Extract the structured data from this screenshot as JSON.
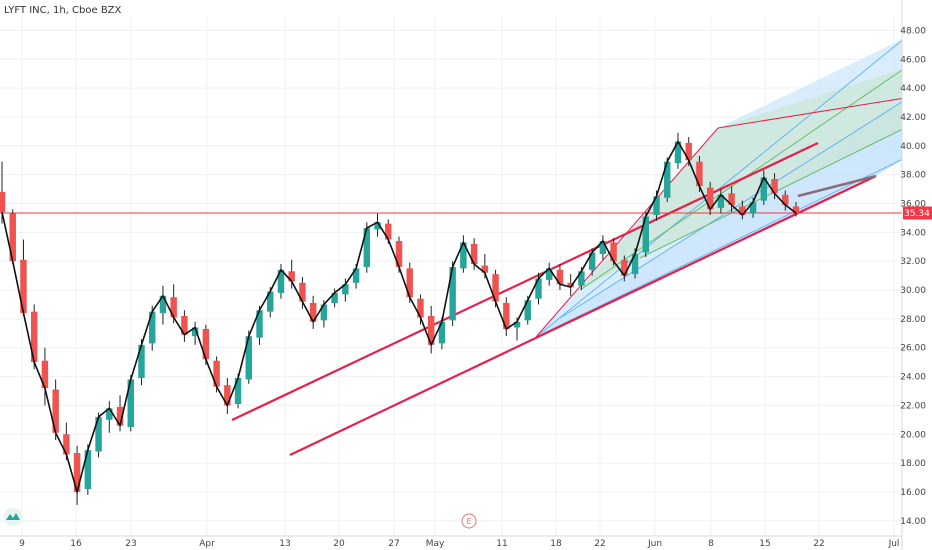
{
  "header": {
    "title": "LYFT INC, 1h, Cboe BZX"
  },
  "price_badge": {
    "value": "35.34",
    "color": "#f23645"
  },
  "earnings_marker": {
    "label": "E"
  },
  "logo": {
    "icon": "tradingview-logo-icon"
  },
  "colors": {
    "up": "#26a69a",
    "down": "#ef5350",
    "wick": "#222222",
    "trendline": "#e91e4a",
    "price_line": "#f23645",
    "channel_fill_blue": "#bbdefb",
    "channel_fill_green": "#c8e6c9",
    "grid": "#eef0f3"
  },
  "chart_data": {
    "type": "candlestick",
    "title": "LYFT INC, 1h, Cboe BZX",
    "x_tick_labels": [
      "9",
      "16",
      "23",
      "Apr",
      "13",
      "20",
      "27",
      "May",
      "11",
      "18",
      "22",
      "Jun",
      "8",
      "15",
      "22",
      "Jul"
    ],
    "y_tick_labels": [
      "14.00",
      "16.00",
      "18.00",
      "20.00",
      "22.00",
      "24.00",
      "26.00",
      "28.00",
      "30.00",
      "32.00",
      "34.00",
      "36.00",
      "38.00",
      "40.00",
      "42.00",
      "44.00",
      "46.00",
      "48.00"
    ],
    "ylim": [
      13.5,
      49.0
    ],
    "current_price": 35.34,
    "grid": true,
    "series": [
      {
        "name": "",
        "values": [
          [
            36.8,
            38.9,
            34.6,
            35.4
          ],
          [
            35.3,
            35.6,
            31.8,
            32.0
          ],
          [
            32.1,
            33.5,
            28.2,
            28.4
          ],
          [
            28.5,
            29.0,
            24.5,
            25.0
          ],
          [
            25.1,
            26.0,
            22.0,
            23.2
          ],
          [
            23.1,
            23.8,
            19.6,
            20.1
          ],
          [
            20.0,
            20.8,
            18.2,
            18.6
          ],
          [
            18.7,
            19.2,
            15.1,
            16.0
          ],
          [
            16.2,
            19.3,
            15.8,
            18.9
          ],
          [
            18.8,
            21.5,
            18.4,
            21.2
          ],
          [
            21.0,
            22.3,
            20.1,
            21.8
          ],
          [
            21.9,
            22.7,
            20.2,
            20.6
          ],
          [
            20.5,
            24.1,
            20.2,
            23.8
          ],
          [
            23.9,
            26.6,
            23.4,
            26.2
          ],
          [
            26.3,
            28.9,
            25.8,
            28.5
          ],
          [
            28.4,
            30.3,
            27.6,
            29.6
          ],
          [
            29.5,
            30.4,
            27.7,
            28.1
          ],
          [
            28.2,
            28.6,
            26.4,
            26.9
          ],
          [
            26.8,
            27.8,
            26.2,
            27.4
          ],
          [
            27.3,
            27.6,
            24.8,
            25.2
          ],
          [
            25.1,
            25.4,
            22.9,
            23.3
          ],
          [
            23.4,
            23.9,
            21.4,
            22.0
          ],
          [
            22.1,
            24.2,
            21.8,
            23.9
          ],
          [
            23.8,
            27.2,
            23.5,
            26.8
          ],
          [
            26.7,
            28.9,
            26.2,
            28.6
          ],
          [
            28.5,
            30.2,
            28.1,
            29.9
          ],
          [
            29.8,
            31.8,
            29.4,
            31.4
          ],
          [
            31.3,
            32.1,
            30.1,
            30.6
          ],
          [
            30.5,
            30.9,
            28.7,
            29.2
          ],
          [
            29.1,
            29.6,
            27.3,
            27.8
          ],
          [
            27.9,
            29.3,
            27.4,
            29.0
          ],
          [
            29.1,
            30.1,
            28.8,
            29.8
          ],
          [
            29.7,
            30.8,
            29.2,
            30.4
          ],
          [
            30.5,
            31.8,
            30.1,
            31.5
          ],
          [
            31.6,
            34.7,
            31.2,
            34.3
          ],
          [
            34.2,
            35.3,
            33.7,
            34.7
          ],
          [
            34.6,
            34.9,
            33.2,
            33.5
          ],
          [
            33.4,
            33.7,
            31.2,
            31.6
          ],
          [
            31.5,
            31.9,
            29.1,
            29.5
          ],
          [
            29.4,
            29.7,
            27.6,
            28.1
          ],
          [
            28.2,
            28.9,
            25.6,
            26.2
          ],
          [
            26.3,
            28.1,
            25.9,
            27.8
          ],
          [
            27.9,
            32.0,
            27.5,
            31.6
          ],
          [
            31.5,
            33.8,
            31.2,
            33.3
          ],
          [
            33.2,
            33.6,
            31.4,
            31.8
          ],
          [
            31.7,
            32.5,
            30.8,
            31.2
          ],
          [
            31.1,
            31.4,
            28.8,
            29.2
          ],
          [
            29.1,
            29.5,
            26.8,
            27.3
          ],
          [
            27.4,
            28.1,
            26.5,
            27.8
          ],
          [
            27.9,
            29.6,
            27.6,
            29.3
          ],
          [
            29.4,
            31.2,
            29.0,
            30.8
          ],
          [
            30.7,
            31.9,
            30.3,
            31.5
          ],
          [
            31.4,
            31.8,
            30.0,
            30.4
          ],
          [
            30.5,
            31.1,
            29.6,
            30.2
          ],
          [
            30.3,
            31.6,
            30.0,
            31.3
          ],
          [
            31.4,
            32.9,
            31.0,
            32.6
          ],
          [
            32.5,
            33.8,
            32.1,
            33.4
          ],
          [
            33.3,
            33.6,
            31.7,
            32.0
          ],
          [
            32.1,
            32.4,
            30.6,
            31.0
          ],
          [
            31.1,
            32.9,
            30.8,
            32.5
          ],
          [
            32.6,
            35.4,
            32.3,
            35.1
          ],
          [
            35.2,
            36.9,
            34.8,
            36.5
          ],
          [
            36.4,
            39.2,
            36.1,
            38.9
          ],
          [
            38.8,
            40.9,
            38.4,
            40.3
          ],
          [
            40.2,
            40.6,
            38.6,
            39.0
          ],
          [
            38.9,
            39.3,
            36.8,
            37.2
          ],
          [
            37.1,
            37.5,
            35.2,
            35.6
          ],
          [
            35.7,
            37.0,
            35.3,
            36.6
          ],
          [
            36.7,
            37.2,
            35.4,
            35.9
          ],
          [
            35.8,
            36.2,
            34.9,
            35.2
          ],
          [
            35.3,
            36.4,
            35.0,
            36.1
          ],
          [
            36.2,
            38.3,
            35.9,
            37.8
          ],
          [
            37.7,
            38.1,
            36.3,
            36.7
          ],
          [
            36.6,
            36.9,
            35.5,
            35.9
          ],
          [
            35.8,
            36.1,
            35.1,
            35.34
          ]
        ]
      }
    ]
  }
}
